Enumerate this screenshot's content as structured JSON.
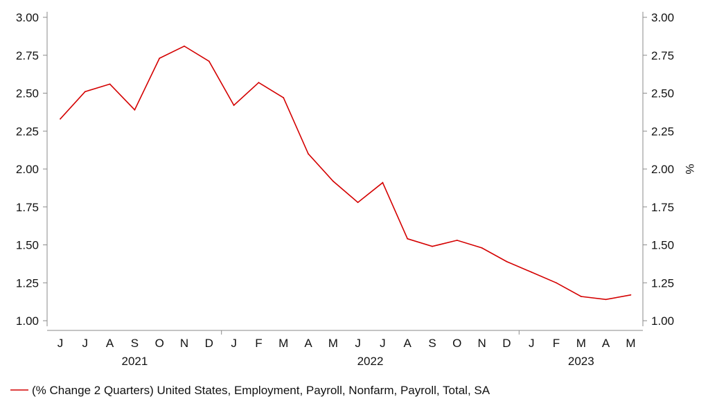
{
  "chart_data": {
    "type": "line",
    "title": "",
    "xlabel": "",
    "ylabel": "",
    "y2label": "%",
    "ylim": [
      1.0,
      3.0
    ],
    "yticks": [
      "1.00",
      "1.25",
      "1.50",
      "1.75",
      "2.00",
      "2.25",
      "2.50",
      "2.75",
      "3.00"
    ],
    "grid": false,
    "legend_position": "bottom-left",
    "x": [
      "J",
      "J",
      "A",
      "S",
      "O",
      "N",
      "D",
      "J",
      "F",
      "M",
      "A",
      "M",
      "J",
      "J",
      "A",
      "S",
      "O",
      "N",
      "D",
      "J",
      "F",
      "M",
      "A",
      "M"
    ],
    "years": [
      {
        "label": "2021",
        "start": 0,
        "end": 6
      },
      {
        "label": "2022",
        "start": 7,
        "end": 18
      },
      {
        "label": "2023",
        "start": 19,
        "end": 23
      }
    ],
    "series": [
      {
        "name": "(% Change 2 Quarters) United States, Employment, Payroll, Nonfarm, Payroll, Total, SA",
        "color": "#d40000",
        "values": [
          2.33,
          2.51,
          2.56,
          2.39,
          2.73,
          2.81,
          2.71,
          2.42,
          2.57,
          2.47,
          2.1,
          1.92,
          1.78,
          1.91,
          1.54,
          1.49,
          1.53,
          1.48,
          1.39,
          1.32,
          1.25,
          1.16,
          1.14,
          1.17
        ]
      }
    ]
  }
}
